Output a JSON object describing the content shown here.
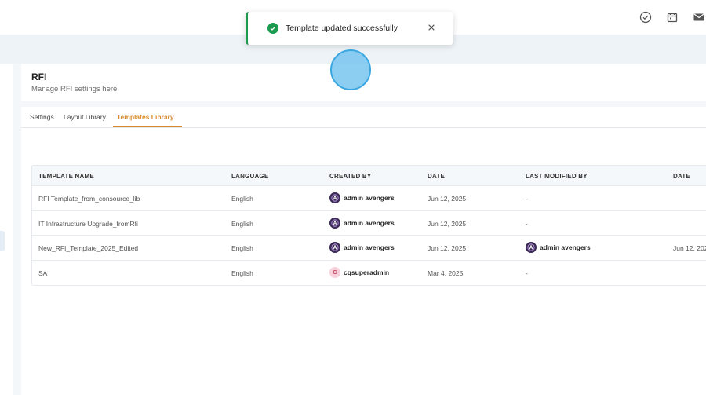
{
  "header": {
    "icons": [
      "check-circle-icon",
      "calendar-icon",
      "mail-icon"
    ]
  },
  "page": {
    "title": "RFI",
    "subtitle": "Manage RFI settings here"
  },
  "tabs": [
    {
      "label": "Settings",
      "active": false
    },
    {
      "label": "Layout Library",
      "active": false
    },
    {
      "label": "Templates Library",
      "active": true
    }
  ],
  "table": {
    "columns": [
      "TEMPLATE NAME",
      "LANGUAGE",
      "CREATED BY",
      "DATE",
      "LAST MODIFIED BY",
      "DATE"
    ],
    "rows": [
      {
        "name": "RFI Template_from_consource_lib",
        "language": "English",
        "created_by": "admin avengers",
        "created_avatar": "A",
        "date": "Jun 12, 2025",
        "modified_by": "-",
        "modified_date": ""
      },
      {
        "name": "IT Infrastructure Upgrade_fromRfi",
        "language": "English",
        "created_by": "admin avengers",
        "created_avatar": "A",
        "date": "Jun 12, 2025",
        "modified_by": "-",
        "modified_date": ""
      },
      {
        "name": "New_RFI_Template_2025_Edited",
        "language": "English",
        "created_by": "admin avengers",
        "created_avatar": "A",
        "date": "Jun 12, 2025",
        "modified_by": "admin avengers",
        "modified_date": "Jun 12, 202"
      },
      {
        "name": "SA",
        "language": "English",
        "created_by": "cqsuperadmin",
        "created_avatar": "C",
        "date": "Mar 4, 2025",
        "modified_by": "-",
        "modified_date": ""
      }
    ]
  },
  "toast": {
    "message": "Template updated successfully",
    "status_color": "#1c9b50"
  },
  "colors": {
    "accent": "#d98a2b"
  }
}
